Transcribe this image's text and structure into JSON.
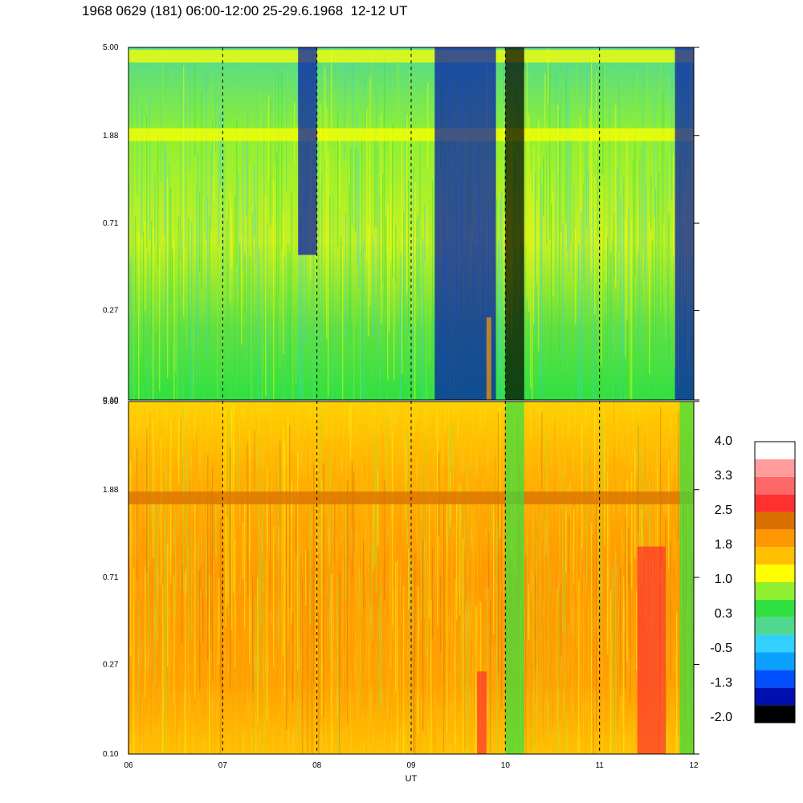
{
  "title": "1968 0629 (181) 06:00-12:00 25-29.6.1968  12-12 UT",
  "chart_data": {
    "type": "heatmap",
    "x_label": "UT",
    "x_ticks": [
      "06",
      "07",
      "08",
      "09",
      "10",
      "11",
      "12"
    ],
    "x_range": [
      6,
      12
    ],
    "y_scale": "log",
    "y_ticks": [
      "0.10",
      "0.27",
      "0.71",
      "1.88",
      "5.00"
    ],
    "y_range": [
      0.1,
      5.0
    ],
    "grid": "vertical dashed lines at each hour",
    "panels": [
      {
        "id": "upper",
        "dominant_levels": "0.3 to 1.0 (green-yellow)",
        "features": [
          {
            "y_center": 1.88,
            "level": 1.0,
            "x_range": [
              6,
              12
            ]
          },
          {
            "y_center": 4.5,
            "level": 1.0,
            "x_range": [
              6,
              12
            ]
          },
          {
            "x_range": [
              7.8,
              8.0
            ],
            "y_range": [
              0.5,
              5.0
            ],
            "level": -1.3
          },
          {
            "x_range": [
              9.25,
              9.9
            ],
            "y_range": [
              0.1,
              5.0
            ],
            "level": -1.3
          },
          {
            "x_range": [
              10.0,
              10.2
            ],
            "y_range": [
              0.1,
              5.0
            ],
            "level": -2.0
          },
          {
            "x_range": [
              11.8,
              12.0
            ],
            "y_range": [
              0.1,
              5.0
            ],
            "level": -1.3
          },
          {
            "x_range": [
              9.8,
              9.85
            ],
            "y_range": [
              0.1,
              0.25
            ],
            "level": 1.8
          }
        ]
      },
      {
        "id": "lower",
        "dominant_levels": "1.0 to 1.8 (yellow-orange)",
        "features": [
          {
            "y_center": 1.7,
            "level": 2.2,
            "x_range": [
              6,
              12
            ]
          },
          {
            "x_range": [
              10.0,
              10.2
            ],
            "y_range": [
              0.1,
              5.0
            ],
            "level": 0.3
          },
          {
            "x_range": [
              9.7,
              9.8
            ],
            "y_range": [
              0.1,
              0.25
            ],
            "level": 2.5
          },
          {
            "x_range": [
              11.4,
              11.7
            ],
            "y_range": [
              0.1,
              1.0
            ],
            "level": 2.5
          },
          {
            "x_range": [
              11.85,
              12.0
            ],
            "y_range": [
              0.1,
              5.0
            ],
            "level": 0.3
          }
        ]
      }
    ],
    "colorbar": {
      "labels": [
        "4.0",
        "3.3",
        "2.5",
        "1.8",
        "1.0",
        "0.3",
        "-0.5",
        "-1.3",
        "-2.0"
      ],
      "range": [
        -2.0,
        4.0
      ],
      "colors": [
        "#000000",
        "#0010b0",
        "#0050ff",
        "#0ca0ff",
        "#30d0ff",
        "#50d890",
        "#30e040",
        "#90f030",
        "#ffff00",
        "#ffc000",
        "#ff9800",
        "#d87000",
        "#ff3030",
        "#ff6868",
        "#ff9c9c",
        "#ffffff"
      ]
    }
  }
}
